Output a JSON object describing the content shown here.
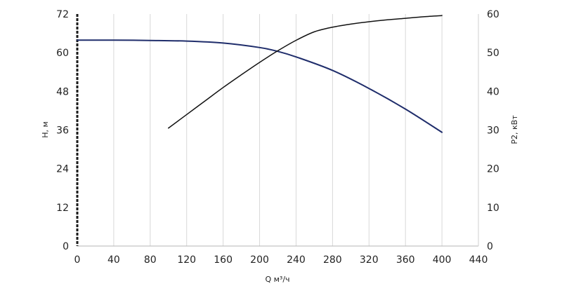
{
  "chart_data": {
    "type": "line",
    "title": "",
    "xlabel": "Q м³/ч",
    "ylabel": "H, м",
    "y2label": "P2, кВт",
    "xlim": [
      0,
      440
    ],
    "ylim": [
      0,
      72
    ],
    "y2lim": [
      0,
      60
    ],
    "x_ticks": [
      0,
      40,
      80,
      120,
      160,
      200,
      240,
      280,
      320,
      360,
      400,
      440
    ],
    "y_ticks": [
      0,
      12,
      24,
      36,
      48,
      60,
      72
    ],
    "y2_ticks": [
      0,
      10,
      20,
      30,
      40,
      50,
      60
    ],
    "grid": "vertical",
    "legend": "none",
    "series": [
      {
        "axis": "left",
        "color": "#1f2d6b",
        "x": [
          0,
          40,
          80,
          120,
          160,
          200,
          220,
          240,
          280,
          320,
          360,
          400
        ],
        "y": [
          63.9,
          63.9,
          63.8,
          63.6,
          63.0,
          61.6,
          60.4,
          58.7,
          54.5,
          48.9,
          42.5,
          35.3
        ]
      },
      {
        "axis": "right",
        "color": "#111111",
        "x": [
          100,
          120,
          140,
          160,
          180,
          200,
          220,
          240,
          260,
          280,
          300,
          320,
          340,
          360,
          380,
          400
        ],
        "y": [
          30.5,
          34.0,
          37.5,
          41.0,
          44.3,
          47.5,
          50.5,
          53.2,
          55.4,
          56.6,
          57.4,
          58.0,
          58.5,
          58.9,
          59.3,
          59.6
        ]
      }
    ]
  }
}
